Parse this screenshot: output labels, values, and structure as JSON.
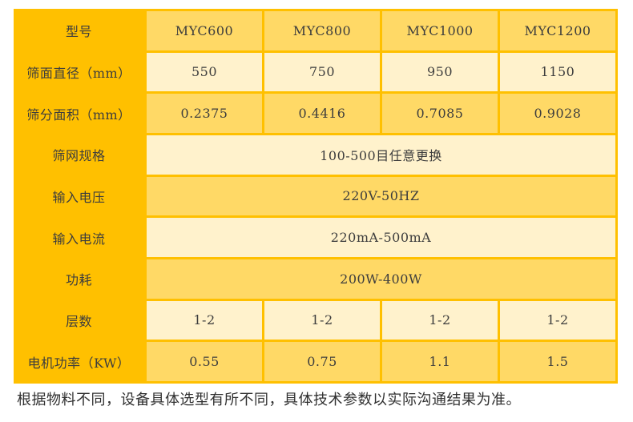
{
  "table": {
    "corner_label": "型号",
    "models": [
      "MYC600",
      "MYC800",
      "MYC1000",
      "MYC1200"
    ],
    "rows": [
      {
        "label": "筛面直径（mm）",
        "values": [
          "550",
          "750",
          "950",
          "1150"
        ]
      },
      {
        "label": "筛分面积（mm）",
        "values": [
          "0.2375",
          "0.4416",
          "0.7085",
          "0.9028"
        ]
      },
      {
        "label": "筛网规格",
        "merged": "100-500目任意更换"
      },
      {
        "label": "输入电压",
        "merged": "220V-50HZ"
      },
      {
        "label": "输入电流",
        "merged": "220mA-500mA"
      },
      {
        "label": "功耗",
        "merged": "200W-400W"
      },
      {
        "label": "层数",
        "values": [
          "1-2",
          "1-2",
          "1-2",
          "1-2"
        ]
      },
      {
        "label": "电机功率（KW）",
        "values": [
          "0.55",
          "0.75",
          "1.1",
          "1.5"
        ]
      }
    ]
  },
  "footnote": "根据物料不同，设备具体选型有所不同，具体技术参数以实际沟通结果为准。",
  "colors": {
    "header_column_bg": "#FFC000",
    "row_gold_bg": "#FFD966",
    "row_cream_bg": "#FFF2CC",
    "table_text": "#3D3D3D",
    "footnote_text": "#303030",
    "page_bg": "#FFFFFF"
  }
}
